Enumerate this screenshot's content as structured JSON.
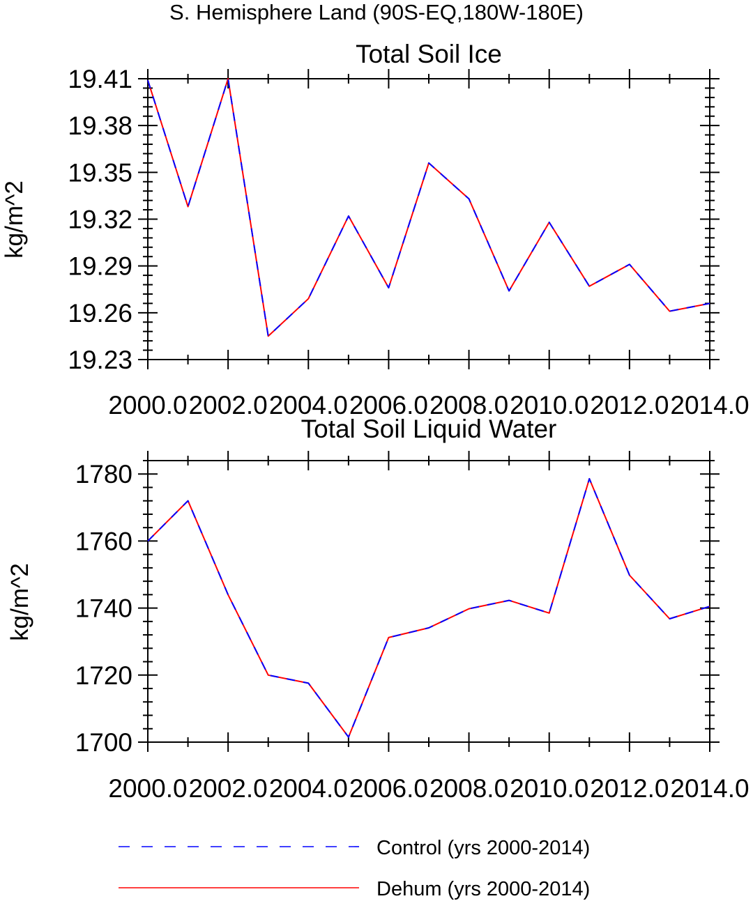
{
  "figure": {
    "title": "S. Hemisphere Land (90S-EQ,180W-180E)"
  },
  "chart_data": [
    {
      "type": "line",
      "title": "Total Soil Ice",
      "xlabel": "",
      "ylabel": "kg/m^2",
      "xlim": [
        2000,
        2014
      ],
      "ylim": [
        19.23,
        19.41
      ],
      "x_ticks": [
        2000,
        2002,
        2004,
        2006,
        2008,
        2010,
        2012,
        2014
      ],
      "x_tick_labels": [
        "2000.0",
        "2002.0",
        "2004.0",
        "2006.0",
        "2008.0",
        "2010.0",
        "2012.0",
        "2014.0"
      ],
      "y_ticks": [
        19.23,
        19.26,
        19.29,
        19.32,
        19.35,
        19.38,
        19.41
      ],
      "y_tick_labels": [
        "19.23",
        "19.26",
        "19.29",
        "19.32",
        "19.35",
        "19.38",
        "19.41"
      ],
      "x": [
        2000,
        2001,
        2002,
        2003,
        2004,
        2005,
        2006,
        2007,
        2008,
        2009,
        2010,
        2011,
        2012,
        2013,
        2014
      ],
      "series": [
        {
          "name": "Control (yrs 2000-2014)",
          "color": "#0000ff",
          "dash": "dashed",
          "values": [
            19.409,
            19.328,
            19.41,
            19.245,
            19.269,
            19.322,
            19.276,
            19.356,
            19.333,
            19.274,
            19.318,
            19.277,
            19.291,
            19.261,
            19.266
          ]
        },
        {
          "name": "Dehum (yrs 2000-2014)",
          "color": "#ff0000",
          "dash": "solid",
          "values": [
            19.409,
            19.328,
            19.41,
            19.245,
            19.269,
            19.322,
            19.276,
            19.356,
            19.333,
            19.274,
            19.318,
            19.277,
            19.291,
            19.261,
            19.266
          ]
        }
      ],
      "grid": false
    },
    {
      "type": "line",
      "title": "Total Soil Liquid Water",
      "xlabel": "",
      "ylabel": "kg/m^2",
      "xlim": [
        2000,
        2014
      ],
      "ylim": [
        1700,
        1784
      ],
      "x_ticks": [
        2000,
        2002,
        2004,
        2006,
        2008,
        2010,
        2012,
        2014
      ],
      "x_tick_labels": [
        "2000.0",
        "2002.0",
        "2004.0",
        "2006.0",
        "2008.0",
        "2010.0",
        "2012.0",
        "2014.0"
      ],
      "y_ticks": [
        1700,
        1720,
        1740,
        1760,
        1780
      ],
      "y_tick_labels": [
        "1700",
        "1720",
        "1740",
        "1760",
        "1780"
      ],
      "x": [
        2000,
        2001,
        2002,
        2003,
        2004,
        2005,
        2006,
        2007,
        2008,
        2009,
        2010,
        2011,
        2012,
        2013,
        2014
      ],
      "series": [
        {
          "name": "Control (yrs 2000-2014)",
          "color": "#0000ff",
          "dash": "dashed",
          "values": [
            1760.0,
            1772.0,
            1744.0,
            1720.0,
            1717.6,
            1701.5,
            1731.2,
            1734.1,
            1739.8,
            1742.3,
            1738.5,
            1778.6,
            1749.8,
            1736.8,
            1740.5
          ]
        },
        {
          "name": "Dehum (yrs 2000-2014)",
          "color": "#ff0000",
          "dash": "solid",
          "values": [
            1760.0,
            1772.0,
            1744.0,
            1720.0,
            1717.6,
            1701.5,
            1731.2,
            1734.1,
            1739.8,
            1742.3,
            1738.5,
            1778.6,
            1749.8,
            1736.8,
            1740.5
          ]
        }
      ],
      "grid": false
    }
  ],
  "legend": {
    "placement": "bottom",
    "entries": [
      {
        "label": "Control (yrs 2000-2014)",
        "color": "#0000ff",
        "dash": "dashed"
      },
      {
        "label": "Dehum (yrs 2000-2014)",
        "color": "#ff0000",
        "dash": "solid"
      }
    ]
  }
}
